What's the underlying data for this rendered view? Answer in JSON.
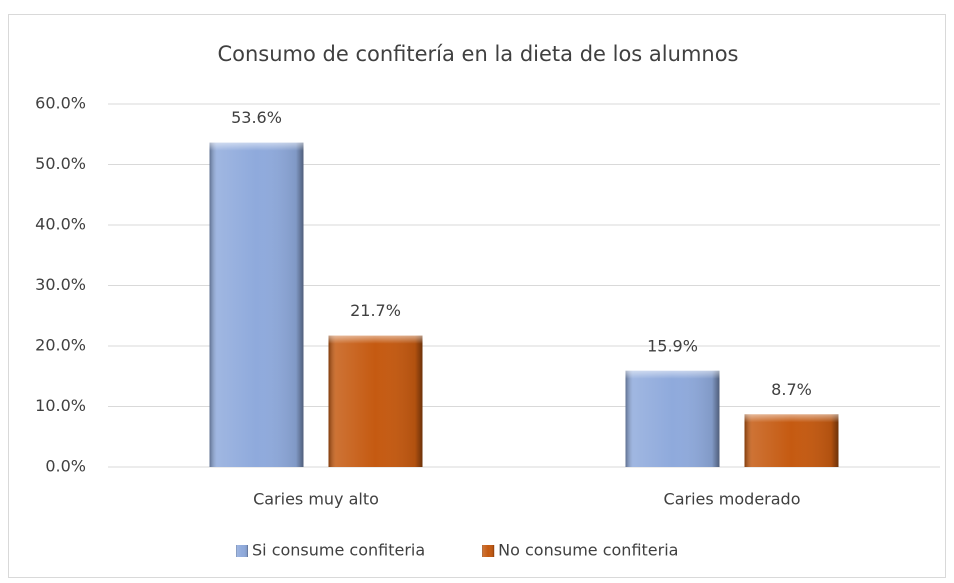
{
  "chart_data": {
    "type": "bar",
    "title": "Consumo de confitería en la dieta de los alumnos",
    "categories": [
      "Caries muy alto",
      "Caries moderado"
    ],
    "series": [
      {
        "name": "Si consume confiteria",
        "color": "#8faadc",
        "values": [
          53.6,
          15.9
        ],
        "value_labels": [
          "53.6%",
          "15.9%"
        ]
      },
      {
        "name": "No consume confiteria",
        "color": "#c55a11",
        "values": [
          21.7,
          8.7
        ],
        "value_labels": [
          "21.7%",
          "8.7%"
        ]
      }
    ],
    "ylim": [
      0,
      60
    ],
    "yticks": [
      {
        "value": 0,
        "label": "0.0%"
      },
      {
        "value": 10,
        "label": "10.0%"
      },
      {
        "value": 20,
        "label": "20.0%"
      },
      {
        "value": 30,
        "label": "30.0%"
      },
      {
        "value": 40,
        "label": "40.0%"
      },
      {
        "value": 50,
        "label": "50.0%"
      },
      {
        "value": 60,
        "label": "60.0%"
      }
    ],
    "grid": true,
    "legend": "bottom"
  }
}
